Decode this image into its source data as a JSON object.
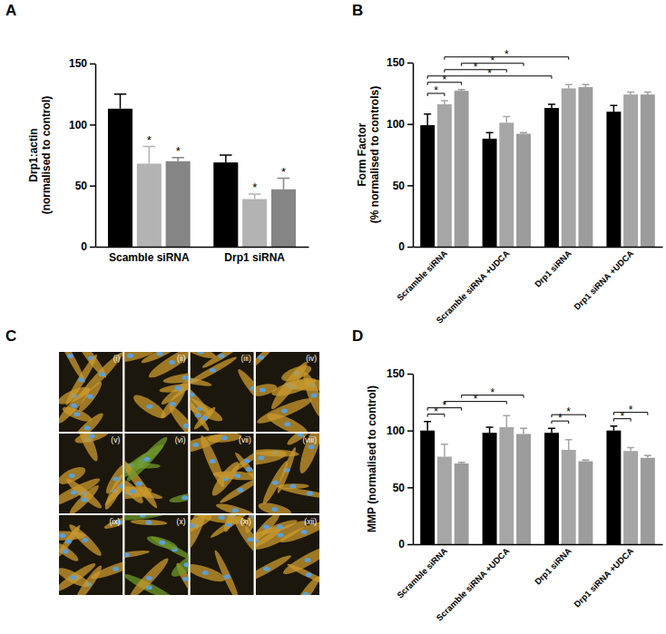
{
  "chart_data": [
    {
      "type": "bar",
      "title": "A",
      "y_label": "Drp1:actin\n(normalised to control)",
      "categories": [
        "Scamble siRNA",
        "Drp1 siRNA"
      ],
      "series": [
        {
          "color": "#000000",
          "values": [
            113,
            69
          ],
          "errors": [
            12,
            6
          ]
        },
        {
          "color": "#b3b3b3",
          "values": [
            68,
            39
          ],
          "errors": [
            14,
            4
          ]
        },
        {
          "color": "#858585",
          "values": [
            70,
            47
          ],
          "errors": [
            3,
            9
          ]
        }
      ],
      "ylim": [
        0,
        150
      ],
      "yticks": [
        0,
        50,
        100,
        150
      ],
      "annotations": [
        {
          "text": "*",
          "category": 0,
          "series": 1
        },
        {
          "text": "*",
          "category": 0,
          "series": 2
        },
        {
          "text": "*",
          "category": 1,
          "series": 1
        },
        {
          "text": "*",
          "category": 1,
          "series": 2
        }
      ]
    },
    {
      "type": "bar",
      "title": "B",
      "y_label": "Form Factor\n(% normalised to controls)",
      "categories": [
        "Scramble siRNA",
        "Scramble siRNA +UDCA",
        "Drp1 siRNA",
        "Drp1 siRNA +UDCA"
      ],
      "series": [
        {
          "color": "#000000",
          "values": [
            99,
            88,
            113,
            110
          ],
          "errors": [
            9,
            5,
            3,
            5
          ]
        },
        {
          "color": "#a6a6a6",
          "values": [
            116,
            101,
            129,
            124
          ],
          "errors": [
            3,
            5,
            3,
            2
          ]
        },
        {
          "color": "#9c9c9c",
          "values": [
            127,
            92,
            130,
            124
          ],
          "errors": [
            1,
            1,
            2,
            2
          ]
        }
      ],
      "ylim": [
        0,
        150
      ],
      "yticks": [
        0,
        50,
        100,
        150
      ],
      "annotations": [
        {
          "text": "*",
          "from": {
            "category": 0,
            "series": 0
          },
          "to": {
            "category": 0,
            "series": 1
          }
        },
        {
          "text": "*",
          "from": {
            "category": 0,
            "series": 0
          },
          "to": {
            "category": 0,
            "series": 2
          }
        },
        {
          "text": "*",
          "from": {
            "category": 0,
            "series": 0
          },
          "to": {
            "category": 2,
            "series": 0
          }
        },
        {
          "text": "*",
          "from": {
            "category": 0,
            "series": 1
          },
          "to": {
            "category": 1,
            "series": 1
          }
        },
        {
          "text": "*",
          "from": {
            "category": 0,
            "series": 2
          },
          "to": {
            "category": 1,
            "series": 2
          }
        },
        {
          "text": "*",
          "from": {
            "category": 0,
            "series": 1
          },
          "to": {
            "category": 2,
            "series": 1
          }
        }
      ]
    },
    {
      "type": "image_grid",
      "title": "C",
      "labels": [
        "(i)",
        "(ii)",
        "(iii)",
        "(iv)",
        "(v)",
        "(vi)",
        "(vii)",
        "(viii)",
        "(ix)",
        "(x)",
        "(xi)",
        "(xii)"
      ]
    },
    {
      "type": "bar",
      "title": "D",
      "y_label": "MMP (normalised to control)",
      "categories": [
        "Scramble siRNA",
        "Scramble siRNA +UDCA",
        "Drp1 siRNA",
        "Drp1 siRNA +UDCA"
      ],
      "series": [
        {
          "color": "#000000",
          "values": [
            100,
            98,
            98,
            100
          ],
          "errors": [
            8,
            5,
            4,
            4
          ]
        },
        {
          "color": "#a6a6a6",
          "values": [
            77,
            103,
            83,
            82
          ],
          "errors": [
            11,
            10,
            9,
            3
          ]
        },
        {
          "color": "#9c9c9c",
          "values": [
            71,
            97,
            73,
            76
          ],
          "errors": [
            1,
            5,
            1,
            2
          ]
        }
      ],
      "ylim": [
        0,
        150
      ],
      "yticks": [
        0,
        50,
        100,
        150
      ],
      "annotations": [
        {
          "text": "*",
          "from": {
            "category": 0,
            "series": 0
          },
          "to": {
            "category": 0,
            "series": 1
          }
        },
        {
          "text": "*",
          "from": {
            "category": 0,
            "series": 0
          },
          "to": {
            "category": 0,
            "series": 2
          }
        },
        {
          "text": "*",
          "from": {
            "category": 0,
            "series": 1
          },
          "to": {
            "category": 1,
            "series": 1
          }
        },
        {
          "text": "*",
          "from": {
            "category": 0,
            "series": 2
          },
          "to": {
            "category": 1,
            "series": 2
          }
        },
        {
          "text": "*",
          "from": {
            "category": 2,
            "series": 0
          },
          "to": {
            "category": 2,
            "series": 1
          }
        },
        {
          "text": "*",
          "from": {
            "category": 2,
            "series": 0
          },
          "to": {
            "category": 2,
            "series": 2
          }
        },
        {
          "text": "*",
          "from": {
            "category": 3,
            "series": 0
          },
          "to": {
            "category": 3,
            "series": 1
          }
        },
        {
          "text": "*",
          "from": {
            "category": 3,
            "series": 0
          },
          "to": {
            "category": 3,
            "series": 2
          }
        }
      ]
    }
  ]
}
